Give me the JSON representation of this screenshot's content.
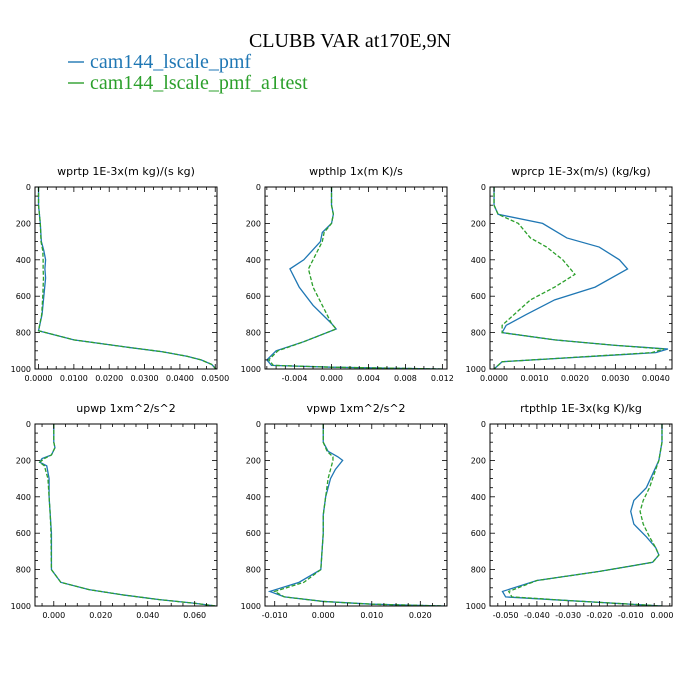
{
  "title": "CLUBB VAR at170E,9N",
  "legend": [
    {
      "label": "cam144_lscale_pmf",
      "color": "#1f77b4",
      "dashed": false
    },
    {
      "label": "cam144_lscale_pmf_a1test",
      "color": "#2ca02c",
      "dashed": true
    }
  ],
  "chart_data": [
    {
      "type": "line",
      "title": "wprtp  1E-3x(m kg)/(s kg)",
      "xlim": [
        -0.001,
        0.0505
      ],
      "ylim": [
        0,
        1000
      ],
      "y_inverted": true,
      "xticks": [
        0.0,
        0.01,
        0.02,
        0.03,
        0.04,
        0.05
      ],
      "xtick_labels": [
        "0.0000",
        "0.0100",
        "0.0200",
        "0.0300",
        "0.0400",
        "0.0500"
      ],
      "yticks": [
        0,
        200,
        400,
        600,
        800,
        1000
      ],
      "ytick_labels": [
        "0",
        "200",
        "400",
        "600",
        "800",
        "1000"
      ],
      "series": [
        {
          "name": "cam144_lscale_pmf",
          "x": [
            0.0,
            0.0,
            0.0005,
            0.0008,
            0.0015,
            0.002,
            0.0018,
            0.002,
            0.0015,
            0.001,
            0.0,
            0.01,
            0.025,
            0.035,
            0.042,
            0.046,
            0.049,
            0.0502
          ],
          "y": [
            0,
            100,
            200,
            300,
            350,
            400,
            450,
            500,
            600,
            700,
            790,
            840,
            880,
            905,
            930,
            950,
            975,
            1000
          ]
        },
        {
          "name": "cam144_lscale_pmf_a1test",
          "x": [
            0.0,
            0.0,
            0.0005,
            0.0007,
            0.0012,
            0.0013,
            0.0013,
            0.0014,
            0.0012,
            0.0009,
            0.0,
            0.01,
            0.025,
            0.035,
            0.042,
            0.046,
            0.049,
            0.0502
          ],
          "y": [
            0,
            100,
            200,
            300,
            350,
            400,
            450,
            500,
            600,
            700,
            790,
            840,
            880,
            905,
            930,
            950,
            975,
            1000
          ]
        }
      ]
    },
    {
      "type": "line",
      "title": "wpthlp  1x(m K)/s",
      "xlim": [
        -0.0072,
        0.0125
      ],
      "ylim": [
        0,
        1000
      ],
      "y_inverted": true,
      "xticks": [
        -0.004,
        0.0,
        0.004,
        0.008,
        0.012
      ],
      "xtick_labels": [
        "-0.004",
        "0.000",
        "0.004",
        "0.008",
        "0.012"
      ],
      "yticks": [
        0,
        200,
        400,
        600,
        800,
        1000
      ],
      "ytick_labels": [
        "0",
        "200",
        "400",
        "600",
        "800",
        "1000"
      ],
      "series": [
        {
          "name": "cam144_lscale_pmf",
          "x": [
            0.0,
            0.0,
            0.0002,
            0.0,
            -0.001,
            -0.0012,
            -0.003,
            -0.0045,
            -0.0035,
            -0.002,
            0.0,
            0.0005,
            -0.003,
            -0.006,
            -0.007,
            -0.0065,
            0.0,
            0.012
          ],
          "y": [
            0,
            100,
            150,
            200,
            250,
            300,
            400,
            450,
            550,
            650,
            750,
            780,
            850,
            900,
            950,
            980,
            990,
            1000
          ]
        },
        {
          "name": "cam144_lscale_pmf_a1test",
          "x": [
            0.0,
            0.0,
            0.0002,
            0.0,
            -0.0008,
            -0.001,
            -0.002,
            -0.0025,
            -0.002,
            -0.001,
            0.0,
            0.0005,
            -0.003,
            -0.0058,
            -0.0068,
            -0.0063,
            0.0,
            0.012
          ],
          "y": [
            0,
            100,
            150,
            200,
            250,
            300,
            400,
            450,
            550,
            650,
            750,
            780,
            850,
            900,
            950,
            980,
            990,
            1000
          ]
        }
      ]
    },
    {
      "type": "line",
      "title": "wprcp  1E-3x(m/s) (kg/kg)",
      "xlim": [
        -0.0001,
        0.0044
      ],
      "ylim": [
        0,
        1000
      ],
      "y_inverted": true,
      "xticks": [
        0.0,
        0.001,
        0.002,
        0.003,
        0.004
      ],
      "xtick_labels": [
        "0.0000",
        "0.0010",
        "0.0020",
        "0.0030",
        "0.0040"
      ],
      "yticks": [
        0,
        200,
        400,
        600,
        800,
        1000
      ],
      "ytick_labels": [
        "0",
        "200",
        "400",
        "600",
        "800",
        "1000"
      ],
      "series": [
        {
          "name": "cam144_lscale_pmf",
          "x": [
            0.0,
            0.0,
            0.0001,
            0.0012,
            0.0018,
            0.0026,
            0.0031,
            0.0033,
            0.0025,
            0.0015,
            0.0008,
            0.0003,
            0.0002,
            0.0015,
            0.003,
            0.0043,
            0.004,
            0.0002,
            0.0
          ],
          "y": [
            0,
            100,
            150,
            200,
            280,
            330,
            400,
            450,
            550,
            620,
            700,
            760,
            800,
            840,
            870,
            890,
            910,
            960,
            1000
          ]
        },
        {
          "name": "cam144_lscale_pmf_a1test",
          "x": [
            0.0,
            0.0,
            0.0001,
            0.0006,
            0.0009,
            0.0013,
            0.0017,
            0.002,
            0.0015,
            0.0009,
            0.0005,
            0.0002,
            0.0002,
            0.0015,
            0.003,
            0.0042,
            0.0039,
            0.0002,
            0.0
          ],
          "y": [
            0,
            100,
            150,
            200,
            280,
            330,
            400,
            480,
            550,
            620,
            700,
            760,
            800,
            840,
            870,
            890,
            910,
            960,
            1000
          ]
        }
      ]
    },
    {
      "type": "line",
      "title": "upwp  1xm^2/s^2",
      "xlim": [
        -0.008,
        0.0695
      ],
      "ylim": [
        0,
        1000
      ],
      "y_inverted": true,
      "xticks": [
        0.0,
        0.02,
        0.04,
        0.06
      ],
      "xtick_labels": [
        "0.000",
        "0.020",
        "0.040",
        "0.060"
      ],
      "yticks": [
        0,
        200,
        400,
        600,
        800,
        1000
      ],
      "ytick_labels": [
        "0",
        "200",
        "400",
        "600",
        "800",
        "1000"
      ],
      "series": [
        {
          "name": "cam144_lscale_pmf",
          "x": [
            0.0,
            0.0,
            0.0005,
            -0.001,
            -0.005,
            -0.006,
            -0.003,
            -0.002,
            -0.002,
            -0.0015,
            -0.001,
            -0.001,
            0.003,
            0.015,
            0.03,
            0.045,
            0.06,
            0.069
          ],
          "y": [
            0,
            100,
            130,
            170,
            190,
            210,
            230,
            300,
            400,
            500,
            600,
            800,
            870,
            910,
            940,
            965,
            985,
            1000
          ]
        },
        {
          "name": "cam144_lscale_pmf_a1test",
          "x": [
            0.0,
            0.0,
            0.0005,
            -0.001,
            -0.004,
            -0.006,
            -0.004,
            -0.0025,
            -0.002,
            -0.0015,
            -0.0012,
            -0.001,
            0.003,
            0.015,
            0.03,
            0.045,
            0.06,
            0.069
          ],
          "y": [
            0,
            100,
            130,
            170,
            190,
            210,
            230,
            300,
            400,
            500,
            600,
            800,
            870,
            910,
            940,
            965,
            985,
            1000
          ]
        }
      ]
    },
    {
      "type": "line",
      "title": "vpwp  1xm^2/s^2",
      "xlim": [
        -0.012,
        0.0255
      ],
      "ylim": [
        0,
        1000
      ],
      "y_inverted": true,
      "xticks": [
        -0.01,
        0.0,
        0.01,
        0.02
      ],
      "xtick_labels": [
        "-0.010",
        "0.000",
        "0.010",
        "0.020"
      ],
      "yticks": [
        0,
        200,
        400,
        600,
        800,
        1000
      ],
      "ytick_labels": [
        "0",
        "200",
        "400",
        "600",
        "800",
        "1000"
      ],
      "series": [
        {
          "name": "cam144_lscale_pmf",
          "x": [
            0.0,
            0.0,
            0.001,
            0.003,
            0.004,
            0.0025,
            0.0015,
            0.0005,
            0.0,
            0.0,
            -0.0005,
            -0.005,
            -0.011,
            -0.008,
            0.0,
            0.01,
            0.025
          ],
          "y": [
            0,
            100,
            150,
            180,
            200,
            250,
            300,
            400,
            500,
            600,
            800,
            870,
            920,
            950,
            975,
            990,
            1000
          ]
        },
        {
          "name": "cam144_lscale_pmf_a1test",
          "x": [
            0.0,
            0.0,
            0.0008,
            0.002,
            0.002,
            0.0015,
            0.001,
            0.0005,
            0.0,
            0.0,
            -0.0005,
            -0.004,
            -0.01,
            -0.008,
            0.0,
            0.01,
            0.025
          ],
          "y": [
            0,
            100,
            150,
            180,
            200,
            250,
            300,
            400,
            500,
            600,
            800,
            870,
            920,
            950,
            975,
            990,
            1000
          ]
        }
      ]
    },
    {
      "type": "line",
      "title": "rtpthlp  1E-3x(kg K)/kg",
      "xlim": [
        -0.055,
        0.0032
      ],
      "ylim": [
        0,
        1000
      ],
      "y_inverted": true,
      "xticks": [
        -0.05,
        -0.04,
        -0.03,
        -0.02,
        -0.01,
        0.0
      ],
      "xtick_labels": [
        "-0.050",
        "-0.040",
        "-0.030",
        "-0.020",
        "-0.010",
        "0.000"
      ],
      "yticks": [
        0,
        200,
        400,
        600,
        800,
        1000
      ],
      "ytick_labels": [
        "0",
        "200",
        "400",
        "600",
        "800",
        "1000"
      ],
      "series": [
        {
          "name": "cam144_lscale_pmf",
          "x": [
            0.0,
            0.0,
            -0.001,
            -0.005,
            -0.009,
            -0.01,
            -0.009,
            -0.005,
            -0.002,
            -0.001,
            -0.003,
            -0.02,
            -0.04,
            -0.051,
            -0.05,
            -0.03,
            0.0
          ],
          "y": [
            0,
            100,
            200,
            350,
            420,
            480,
            550,
            620,
            680,
            720,
            760,
            810,
            860,
            920,
            950,
            970,
            1000
          ]
        },
        {
          "name": "cam144_lscale_pmf_a1test",
          "x": [
            0.0,
            0.0,
            -0.001,
            -0.004,
            -0.006,
            -0.007,
            -0.006,
            -0.004,
            -0.002,
            -0.001,
            -0.003,
            -0.02,
            -0.04,
            -0.049,
            -0.048,
            -0.03,
            0.0
          ],
          "y": [
            0,
            100,
            200,
            350,
            420,
            480,
            550,
            620,
            680,
            720,
            760,
            810,
            860,
            920,
            950,
            970,
            1000
          ]
        }
      ]
    }
  ]
}
